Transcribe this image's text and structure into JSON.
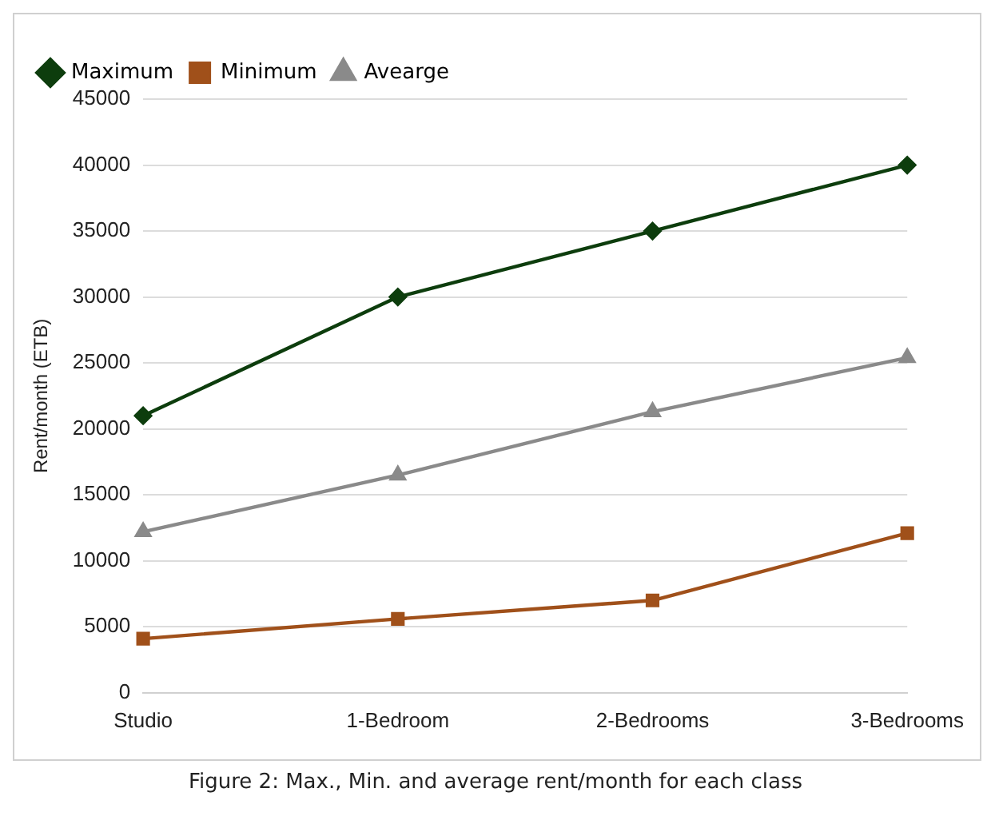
{
  "chart_data": {
    "type": "line",
    "categories": [
      "Studio",
      "1-Bedroom",
      "2-Bedrooms",
      "3-Bedrooms"
    ],
    "series": [
      {
        "name": "Maximum",
        "color": "#0d3d0d",
        "marker": "diamond",
        "values": [
          21000,
          30000,
          35000,
          40000
        ]
      },
      {
        "name": "Minimum",
        "color": "#a0501a",
        "marker": "square",
        "values": [
          4100,
          5600,
          7000,
          12100
        ]
      },
      {
        "name": "Avearge",
        "color": "#8a8a8a",
        "marker": "triangle",
        "values": [
          12200,
          16500,
          21300,
          25400
        ]
      }
    ],
    "ylabel": "Rent/month (ETB)",
    "ylim": [
      0,
      45000
    ],
    "yticks": [
      0,
      5000,
      10000,
      15000,
      20000,
      25000,
      30000,
      35000,
      40000,
      45000
    ],
    "grid": "y",
    "legend": "top left",
    "annotations": [
      "Figure 2:  Max., Min. and average rent/month for each class"
    ]
  }
}
